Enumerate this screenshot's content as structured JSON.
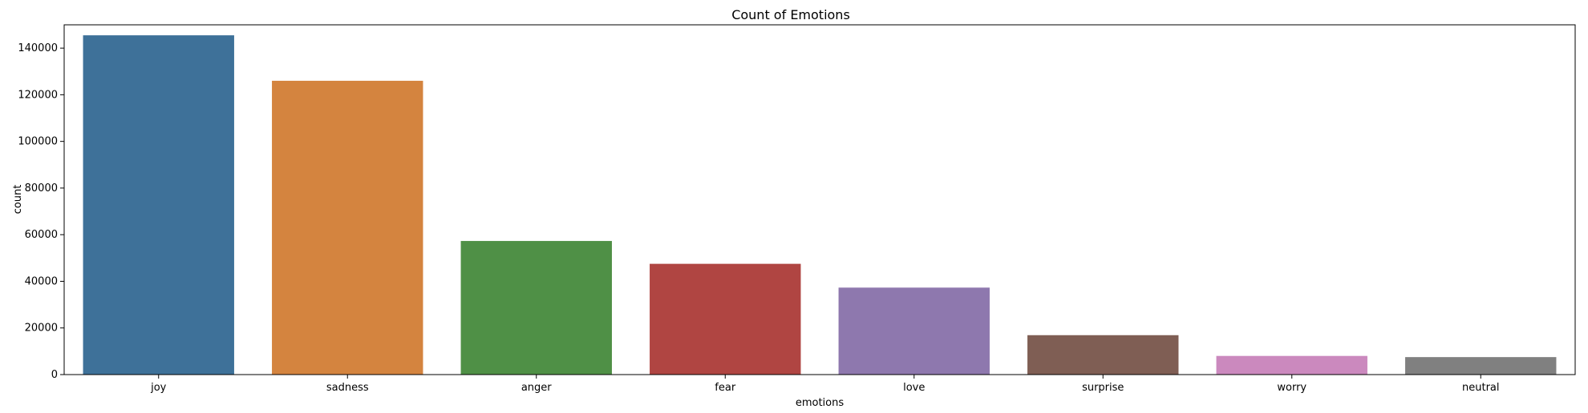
{
  "chart_data": {
    "type": "bar",
    "title": "Count of Emotions",
    "xlabel": "emotions",
    "ylabel": "count",
    "ylim": [
      0,
      150000
    ],
    "yticks": [
      0,
      20000,
      40000,
      60000,
      80000,
      100000,
      120000,
      140000
    ],
    "ytick_labels": [
      "0",
      "20000",
      "40000",
      "60000",
      "80000",
      "100000",
      "120000",
      "140000"
    ],
    "categories": [
      "joy",
      "sadness",
      "anger",
      "fear",
      "love",
      "surprise",
      "worry",
      "neutral"
    ],
    "values": [
      145500,
      126000,
      57300,
      47500,
      37300,
      16900,
      8000,
      7500
    ],
    "colors": [
      "#3e7199",
      "#d4843f",
      "#4f9046",
      "#b04542",
      "#8e78ae",
      "#7f5e54",
      "#cb89be",
      "#808080"
    ],
    "grid": false
  }
}
